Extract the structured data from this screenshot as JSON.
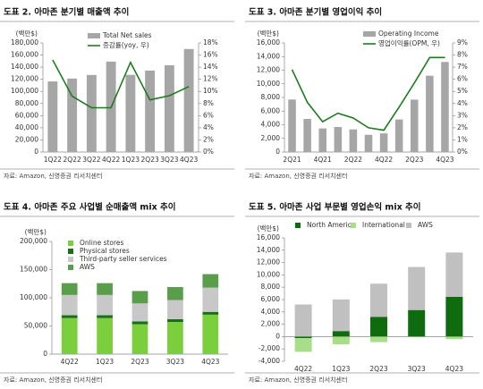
{
  "chart_data": [
    {
      "type": "combo",
      "title": "도표 2. 아마존 분기별 매출액 추이",
      "source": "자료: Amazon, 신영증권 리서치센터",
      "y_label": "(백만$)",
      "legend": "top",
      "categories": [
        "1Q22",
        "2Q22",
        "3Q22",
        "4Q22",
        "1Q23",
        "2Q23",
        "3Q23",
        "4Q23"
      ],
      "series": [
        {
          "name": "Total Net sales",
          "type": "bar",
          "color": "#a6a6a6",
          "values": [
            116444,
            121234,
            127101,
            149204,
            127358,
            134383,
            143083,
            169961
          ]
        },
        {
          "name": "증감률(yoy, 우)",
          "type": "line",
          "axis": "y2",
          "color": "#1e7b1e",
          "values": [
            15.2,
            9.2,
            7.3,
            7.3,
            14.8,
            8.6,
            9.3,
            10.8
          ]
        }
      ],
      "ylim": [
        0,
        180000
      ],
      "yticks": [
        0,
        {
          "value": 20000,
          "label": "20,000"
        },
        {
          "value": 40000,
          "label": "40,000"
        },
        {
          "value": 60000,
          "label": "60,000"
        },
        {
          "value": 80000,
          "label": "80,000"
        },
        {
          "value": 100000,
          "label": "100,000"
        },
        {
          "value": 120000,
          "label": "120,000"
        },
        {
          "value": 140000,
          "label": "140,000"
        },
        {
          "value": 160000,
          "label": "160,000"
        },
        {
          "value": 180000,
          "label": "180,000"
        }
      ],
      "y2lim": [
        0,
        18
      ],
      "y2ticks": [
        {
          "value": 0,
          "label": "0%"
        },
        {
          "value": 2,
          "label": "2%"
        },
        {
          "value": 4,
          "label": "4%"
        },
        {
          "value": 6,
          "label": "6%"
        },
        {
          "value": 8,
          "label": "8%"
        },
        {
          "value": 10,
          "label": "10%"
        },
        {
          "value": 12,
          "label": "12%"
        },
        {
          "value": 14,
          "label": "14%"
        },
        {
          "value": 16,
          "label": "16%"
        },
        {
          "value": 18,
          "label": "18%"
        }
      ]
    },
    {
      "type": "combo",
      "title": "도표 3. 아마존 분기별 영업이익 추이",
      "source": "자료: Amazon, 신영증권 리서치센터",
      "y_label": "(백만$)",
      "legend": "top-right",
      "categories": [
        "2Q21",
        null,
        "4Q21",
        null,
        "2Q22",
        null,
        "4Q22",
        null,
        "2Q23",
        null,
        "4Q23"
      ],
      "series": [
        {
          "name": "Operating Income",
          "type": "bar",
          "color": "#a6a6a6",
          "values": [
            7702,
            4852,
            3460,
            3669,
            3317,
            2525,
            2737,
            4774,
            7681,
            11188,
            13209
          ]
        },
        {
          "name": "영업이익률(OPM, 우)",
          "type": "line",
          "axis": "y2",
          "color": "#1e7b1e",
          "values": [
            6.8,
            4.1,
            2.5,
            3.2,
            2.8,
            2.0,
            1.8,
            3.7,
            5.7,
            7.8,
            7.8
          ]
        }
      ],
      "ylim": [
        0,
        16000
      ],
      "yticks": [
        0,
        {
          "value": 2000,
          "label": "2,000"
        },
        {
          "value": 4000,
          "label": "4,000"
        },
        {
          "value": 6000,
          "label": "6,000"
        },
        {
          "value": 8000,
          "label": "8,000"
        },
        {
          "value": 10000,
          "label": "10,000"
        },
        {
          "value": 12000,
          "label": "12,000"
        },
        {
          "value": 14000,
          "label": "14,000"
        },
        {
          "value": 16000,
          "label": "16,000"
        }
      ],
      "y2lim": [
        0,
        9
      ],
      "y2ticks": [
        {
          "value": 0,
          "label": "0%"
        },
        {
          "value": 1,
          "label": "1%"
        },
        {
          "value": 2,
          "label": "2%"
        },
        {
          "value": 3,
          "label": "3%"
        },
        {
          "value": 4,
          "label": "4%"
        },
        {
          "value": 5,
          "label": "5%"
        },
        {
          "value": 6,
          "label": "6%"
        },
        {
          "value": 7,
          "label": "7%"
        },
        {
          "value": 8,
          "label": "8%"
        },
        {
          "value": 9,
          "label": "9%"
        }
      ]
    },
    {
      "type": "stacked_bar",
      "title": "도표 4. 아마존 주요 사업별 순매출액 mix 추이",
      "source": "자료: Amazon, 신영증권 리서치센터",
      "y_label": "(백만$)",
      "legend": "top-left",
      "categories": [
        "4Q22",
        "1Q23",
        "2Q23",
        "3Q23",
        "4Q23"
      ],
      "series": [
        {
          "name": "Online stores",
          "color": "#7ccf3c",
          "values": [
            64000,
            64000,
            53000,
            57000,
            70000
          ]
        },
        {
          "name": "Physical stores",
          "color": "#1a6e1a",
          "values": [
            5000,
            5000,
            5000,
            5000,
            5000
          ]
        },
        {
          "name": "Third-party seller services",
          "color": "#c8c8c8",
          "values": [
            36000,
            36000,
            32000,
            34000,
            43000
          ]
        },
        {
          "name": "AWS",
          "color": "#5a9e4c",
          "values": [
            21000,
            21000,
            22000,
            23000,
            24000
          ]
        }
      ],
      "ylim": [
        0,
        200000
      ],
      "yticks": [
        0,
        {
          "value": 50000,
          "label": "50,000"
        },
        {
          "value": 100000,
          "label": "100,000"
        },
        {
          "value": 150000,
          "label": "150,000"
        },
        {
          "value": 200000,
          "label": "200,000"
        }
      ]
    },
    {
      "type": "stacked_bar",
      "title": "도표 5. 아마존 사업 부문별 영업손익 mix 추이",
      "source": "자료: Amazon, 신영증권 리서치센터",
      "y_label": "(백만$)",
      "legend": "top-row",
      "categories": [
        "4Q22",
        "1Q23",
        "2Q23",
        "3Q23",
        "4Q23"
      ],
      "series": [
        {
          "name": "North America",
          "color": "#0e6b0e",
          "values": [
            -240,
            898,
            3211,
            4307,
            6461
          ]
        },
        {
          "name": "International",
          "color": "#a8de8a",
          "values": [
            -2228,
            -1247,
            -895,
            -95,
            -419
          ]
        },
        {
          "name": "AWS",
          "color": "#c0c0c0",
          "values": [
            5205,
            5123,
            5365,
            6976,
            7167
          ]
        }
      ],
      "ylim": [
        -4000,
        16000
      ],
      "yticks": [
        {
          "value": -4000,
          "label": "-4,000"
        },
        {
          "value": -2000,
          "label": "-2,000"
        },
        0,
        {
          "value": 2000,
          "label": "2,000"
        },
        {
          "value": 4000,
          "label": "4,000"
        },
        {
          "value": 6000,
          "label": "6,000"
        },
        {
          "value": 8000,
          "label": "8,000"
        },
        {
          "value": 10000,
          "label": "10,000"
        },
        {
          "value": 12000,
          "label": "12,000"
        },
        {
          "value": 14000,
          "label": "14,000"
        },
        {
          "value": 16000,
          "label": "16,000"
        }
      ]
    }
  ]
}
